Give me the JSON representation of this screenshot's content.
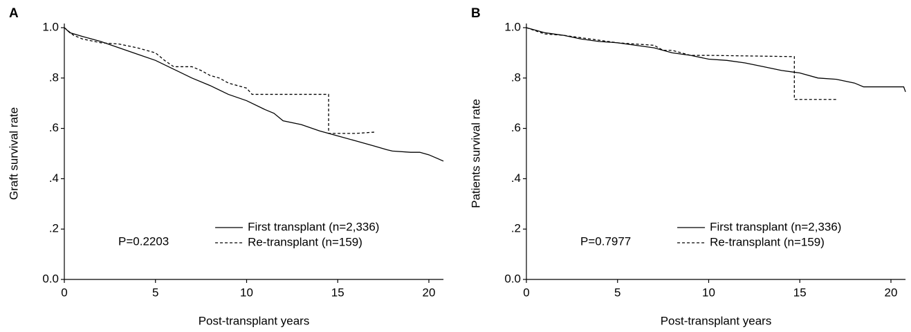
{
  "chart_data": [
    {
      "type": "line",
      "panel": "A",
      "ylabel": "Graft survival rate",
      "xlabel": "Post-transplant years",
      "annotation": "P=0.2203",
      "legend_loc": "lower right",
      "xlim": [
        0,
        20.8
      ],
      "xticks": [
        0,
        5,
        10,
        15,
        20
      ],
      "ylim": [
        0,
        1.0
      ],
      "yticks": [
        {
          "value": 0,
          "label": "0.0"
        },
        {
          "value": 0.2,
          "label": ".2"
        },
        {
          "value": 0.4,
          "label": ".4"
        },
        {
          "value": 0.6,
          "label": ".6"
        },
        {
          "value": 0.8,
          "label": ".8"
        },
        {
          "value": 1.0,
          "label": "1.0"
        }
      ],
      "series": [
        {
          "name": "First transplant (n=2,336)",
          "color": "#000000",
          "style": "solid",
          "x": [
            0,
            0.3,
            1,
            2,
            3,
            4,
            5,
            6,
            7,
            8,
            9,
            10,
            11,
            11.5,
            12,
            13,
            14,
            15,
            16,
            17,
            17.7,
            18,
            19,
            19.5,
            20,
            20.8
          ],
          "values": [
            1.0,
            0.98,
            0.965,
            0.945,
            0.92,
            0.895,
            0.87,
            0.835,
            0.8,
            0.77,
            0.735,
            0.71,
            0.675,
            0.66,
            0.63,
            0.615,
            0.59,
            0.57,
            0.55,
            0.53,
            0.515,
            0.51,
            0.505,
            0.505,
            0.495,
            0.47
          ]
        },
        {
          "name": "Re-transplant (n=159)",
          "color": "#000000",
          "style": "dotted",
          "x": [
            0,
            0.5,
            1,
            2,
            3,
            4,
            5,
            5.5,
            6,
            7,
            7.5,
            8,
            8.5,
            9,
            9.5,
            10,
            10.3,
            14.5,
            14.5,
            15,
            16,
            17
          ],
          "values": [
            1.0,
            0.97,
            0.955,
            0.94,
            0.935,
            0.92,
            0.9,
            0.87,
            0.845,
            0.845,
            0.83,
            0.81,
            0.8,
            0.78,
            0.77,
            0.76,
            0.735,
            0.735,
            0.58,
            0.58,
            0.58,
            0.585
          ]
        }
      ]
    },
    {
      "type": "line",
      "panel": "B",
      "ylabel": "Patients survival rate",
      "xlabel": "Post-transplant years",
      "annotation": "P=0.7977",
      "legend_loc": "lower right",
      "xlim": [
        0,
        20.8
      ],
      "xticks": [
        0,
        5,
        10,
        15,
        20
      ],
      "ylim": [
        0,
        1.0
      ],
      "yticks": [
        {
          "value": 0,
          "label": "0.0"
        },
        {
          "value": 0.2,
          "label": ".2"
        },
        {
          "value": 0.4,
          "label": ".4"
        },
        {
          "value": 0.6,
          "label": ".6"
        },
        {
          "value": 0.8,
          "label": ".8"
        },
        {
          "value": 1.0,
          "label": "1.0"
        }
      ],
      "series": [
        {
          "name": "First transplant (n=2,336)",
          "color": "#000000",
          "style": "solid",
          "x": [
            0,
            1,
            2,
            3,
            4,
            5,
            6,
            7,
            8,
            9,
            10,
            11,
            12,
            13,
            14,
            15,
            16,
            17,
            18,
            18.5,
            20,
            20.7,
            20.8
          ],
          "values": [
            1.0,
            0.98,
            0.97,
            0.955,
            0.945,
            0.94,
            0.93,
            0.92,
            0.9,
            0.89,
            0.875,
            0.87,
            0.86,
            0.845,
            0.83,
            0.82,
            0.8,
            0.795,
            0.78,
            0.765,
            0.765,
            0.765,
            0.745
          ]
        },
        {
          "name": "Re-transplant (n=159)",
          "color": "#000000",
          "style": "dotted",
          "x": [
            0,
            1,
            2,
            3,
            4,
            5,
            6,
            7,
            7.5,
            8,
            9,
            10,
            14.7,
            14.7,
            15,
            17
          ],
          "values": [
            1.0,
            0.975,
            0.97,
            0.96,
            0.95,
            0.94,
            0.935,
            0.93,
            0.91,
            0.91,
            0.89,
            0.89,
            0.885,
            0.715,
            0.715,
            0.715
          ]
        }
      ]
    }
  ]
}
